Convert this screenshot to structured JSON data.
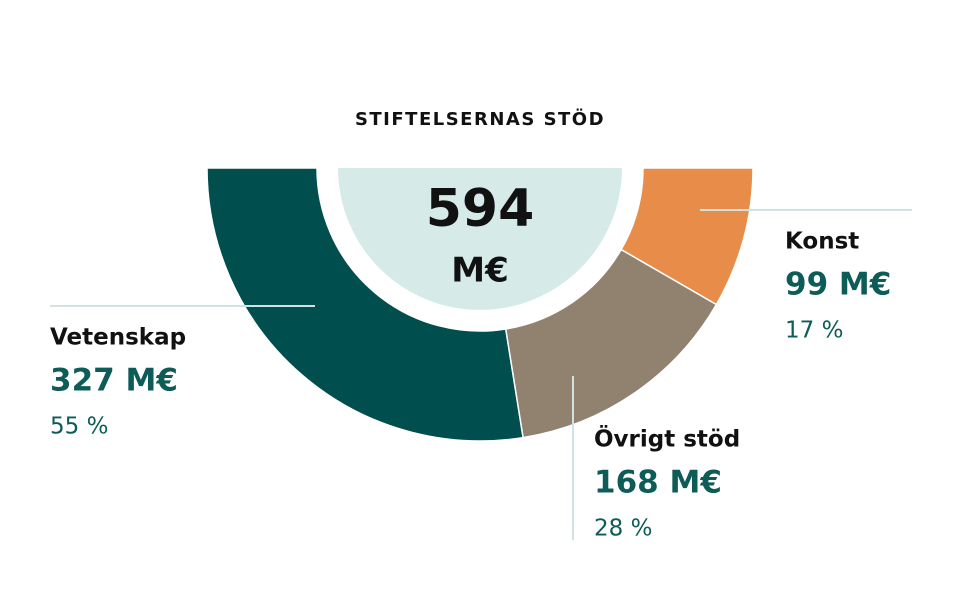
{
  "chart_data": {
    "type": "half-donut",
    "title": "STIFTELSERNAS STÖD",
    "total": 594,
    "total_unit": "M€",
    "categories": [
      "Vetenskap",
      "Övrigt stöd",
      "Konst"
    ],
    "values": [
      327,
      168,
      99
    ],
    "value_labels": [
      "327 M€",
      "168 M€",
      "99 M€"
    ],
    "share_labels": [
      "55 %",
      "28 %",
      "17 %"
    ],
    "colors": [
      "#004e4d",
      "#918270",
      "#e88c4a"
    ]
  }
}
